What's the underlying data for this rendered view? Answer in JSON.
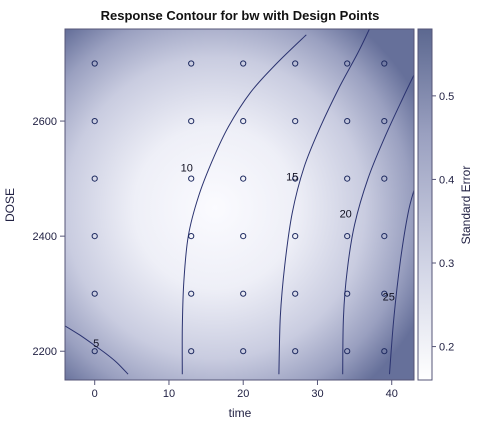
{
  "chart_data": {
    "type": "contour",
    "title": "Response Contour for bw with Design Points",
    "xlabel": "time",
    "ylabel": "DOSE",
    "xlim": [
      -4,
      43
    ],
    "ylim": [
      2150,
      2760
    ],
    "x_ticks": [
      0,
      10,
      20,
      30,
      40
    ],
    "y_ticks": [
      2200,
      2400,
      2600
    ],
    "design_points": {
      "times": [
        0,
        13,
        20,
        27,
        34,
        39
      ],
      "doses": [
        2200,
        2300,
        2400,
        2500,
        2600,
        2700
      ]
    },
    "contours": [
      {
        "level": "5",
        "points": [
          [
            -4,
            2244
          ],
          [
            -2,
            2228
          ],
          [
            0,
            2210
          ],
          [
            1.5,
            2196
          ],
          [
            3,
            2180
          ],
          [
            4.5,
            2160
          ]
        ],
        "label_at": [
          0.2,
          2207
        ]
      },
      {
        "level": "10",
        "points": [
          [
            11.8,
            2160
          ],
          [
            11.8,
            2240
          ],
          [
            12,
            2320
          ],
          [
            12.6,
            2400
          ],
          [
            14,
            2470
          ],
          [
            15.8,
            2530
          ],
          [
            18,
            2590
          ],
          [
            21,
            2650
          ],
          [
            24.5,
            2700
          ],
          [
            28.5,
            2750
          ]
        ],
        "label_at": [
          12.4,
          2512
        ]
      },
      {
        "level": "15",
        "points": [
          [
            24.8,
            2160
          ],
          [
            25,
            2260
          ],
          [
            25.6,
            2350
          ],
          [
            26.6,
            2440
          ],
          [
            28.2,
            2520
          ],
          [
            30.4,
            2590
          ],
          [
            33,
            2660
          ],
          [
            35.5,
            2720
          ],
          [
            37,
            2760
          ]
        ],
        "label_at": [
          26.6,
          2497
        ]
      },
      {
        "level": "20",
        "points": [
          [
            33.4,
            2160
          ],
          [
            33.5,
            2260
          ],
          [
            34,
            2340
          ],
          [
            35,
            2420
          ],
          [
            36.8,
            2500
          ],
          [
            39,
            2570
          ],
          [
            41.5,
            2640
          ],
          [
            43,
            2680
          ]
        ],
        "label_at": [
          33.8,
          2432
        ]
      },
      {
        "level": "25",
        "points": [
          [
            39.7,
            2160
          ],
          [
            40.3,
            2260
          ],
          [
            41.2,
            2360
          ],
          [
            42.2,
            2440
          ],
          [
            43,
            2480
          ]
        ],
        "label_at": [
          39.6,
          2288
        ]
      }
    ],
    "colorbar": {
      "label": "Standard Error",
      "range": [
        0.16,
        0.58
      ],
      "ticks": [
        "0.2",
        "0.3",
        "0.4",
        "0.5"
      ],
      "tick_values": [
        0.2,
        0.3,
        0.4,
        0.5
      ],
      "color_low": "#ffffff",
      "color_high": "#5c6890"
    },
    "colors": {
      "surface_center": "#fbfbff",
      "surface_mid": "#d8daea",
      "surface_edge": "#6a7298",
      "contour_line": "#2b3370",
      "marker": "#1e2a60",
      "axis": "#555577"
    }
  }
}
